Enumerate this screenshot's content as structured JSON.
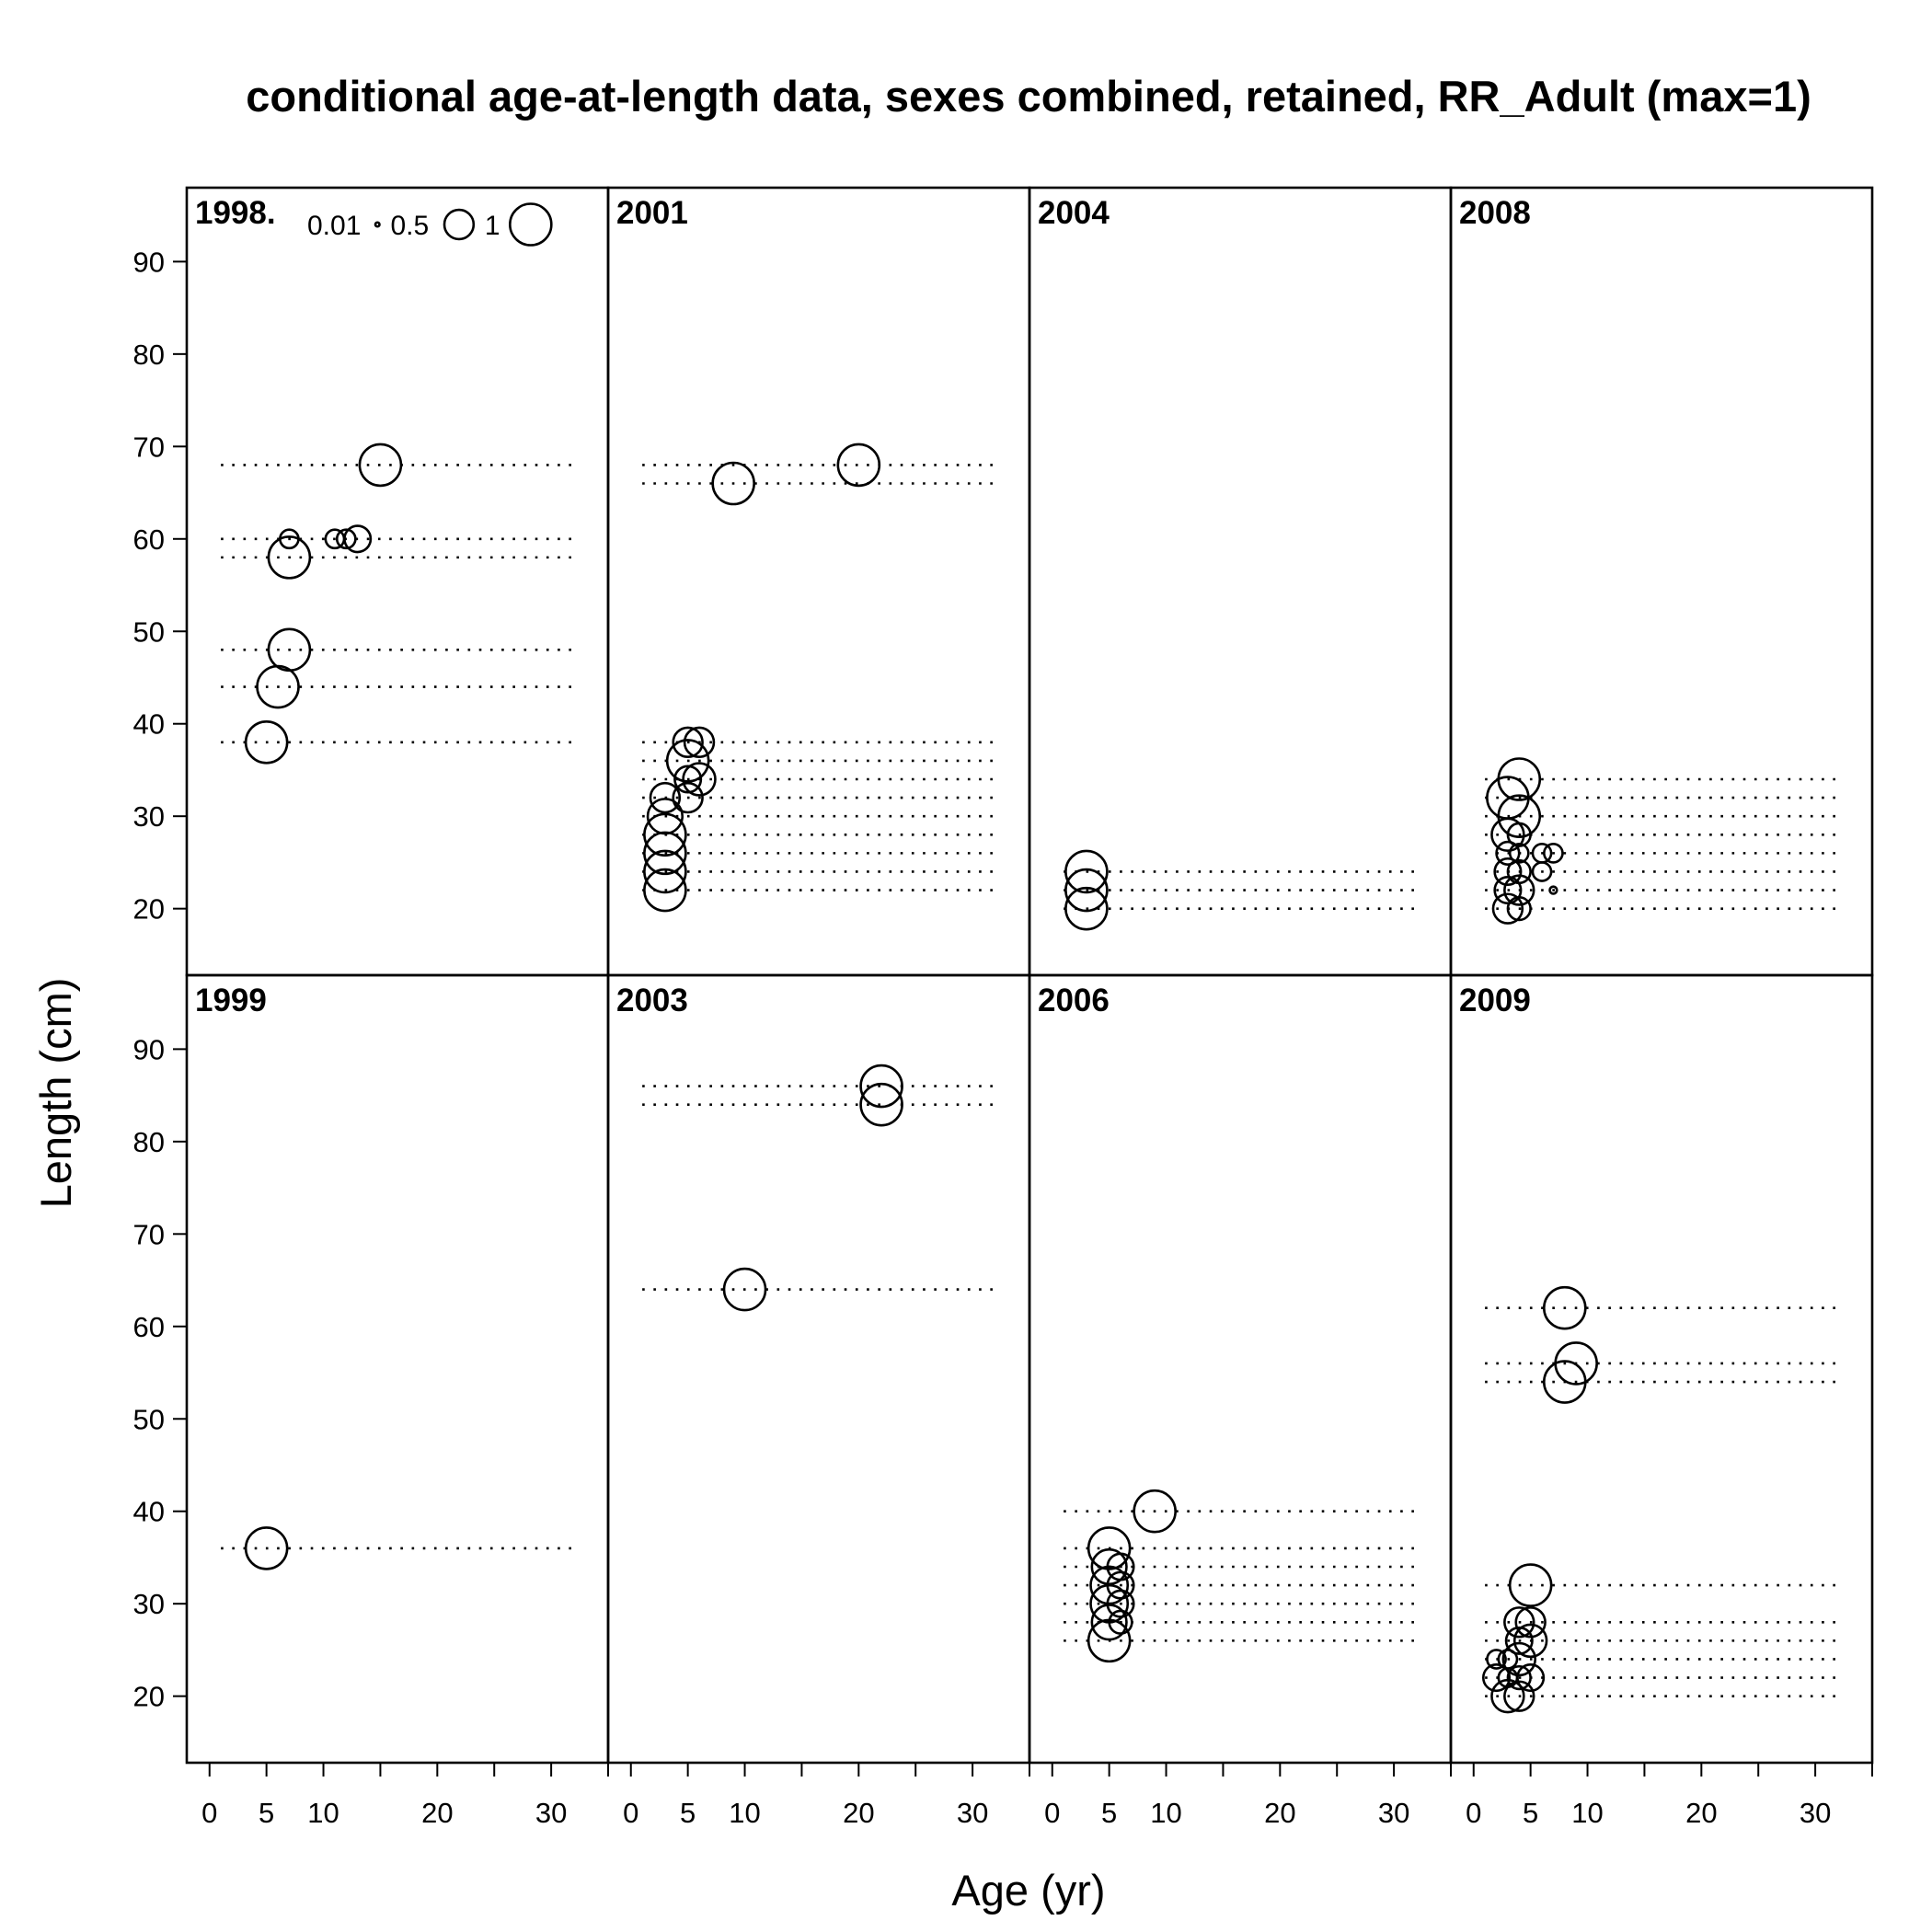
{
  "chart_data": {
    "type": "scatter",
    "title": "conditional age-at-length data, sexes combined, retained, RR_Adult (max=1)",
    "xlabel": "Age (yr)",
    "ylabel": "Length (cm)",
    "xlim": [
      -2,
      35
    ],
    "ylim": [
      12.8,
      98
    ],
    "x_ticks": [
      0,
      5,
      10,
      20,
      30
    ],
    "x_minor_ticks": [
      15,
      25,
      35
    ],
    "y_ticks": [
      20,
      30,
      40,
      50,
      60,
      70,
      80,
      90
    ],
    "grid": false,
    "layout": {
      "rows": 2,
      "cols": 4
    },
    "legend": {
      "placement": "top of first panel",
      "entries": [
        {
          "label": "0.01",
          "value": 0.01
        },
        {
          "label": "0.5",
          "value": 0.5
        },
        {
          "label": "1",
          "value": 1
        }
      ]
    },
    "panels": [
      {
        "label": "1998.",
        "lengths": [
          38,
          44,
          48,
          58,
          60,
          68
        ],
        "points": [
          {
            "x": 5,
            "y": 38,
            "size": 1
          },
          {
            "x": 6,
            "y": 44,
            "size": 1
          },
          {
            "x": 7,
            "y": 48,
            "size": 1
          },
          {
            "x": 7,
            "y": 58,
            "size": 1
          },
          {
            "x": 7,
            "y": 60,
            "size": 0.2
          },
          {
            "x": 11,
            "y": 60,
            "size": 0.2
          },
          {
            "x": 12,
            "y": 60,
            "size": 0.2
          },
          {
            "x": 13,
            "y": 60,
            "size": 0.4
          },
          {
            "x": 15,
            "y": 68,
            "size": 1
          }
        ]
      },
      {
        "label": "1999",
        "lengths": [
          36
        ],
        "points": [
          {
            "x": 5,
            "y": 36,
            "size": 1
          }
        ]
      },
      {
        "label": "2001",
        "lengths": [
          22,
          24,
          26,
          28,
          30,
          32,
          34,
          36,
          38,
          66,
          68
        ],
        "points": [
          {
            "x": 3,
            "y": 22,
            "size": 1
          },
          {
            "x": 3,
            "y": 24,
            "size": 1
          },
          {
            "x": 3,
            "y": 26,
            "size": 1
          },
          {
            "x": 3,
            "y": 28,
            "size": 1
          },
          {
            "x": 3,
            "y": 30,
            "size": 0.7
          },
          {
            "x": 3,
            "y": 32,
            "size": 0.5
          },
          {
            "x": 5,
            "y": 32,
            "size": 0.5
          },
          {
            "x": 6,
            "y": 34,
            "size": 0.6
          },
          {
            "x": 5,
            "y": 34,
            "size": 0.4
          },
          {
            "x": 5,
            "y": 36,
            "size": 1
          },
          {
            "x": 5,
            "y": 38,
            "size": 0.5
          },
          {
            "x": 6,
            "y": 38,
            "size": 0.5
          },
          {
            "x": 9,
            "y": 66,
            "size": 1
          },
          {
            "x": 20,
            "y": 68,
            "size": 1
          }
        ]
      },
      {
        "label": "2003",
        "lengths": [
          64,
          84,
          86
        ],
        "points": [
          {
            "x": 10,
            "y": 64,
            "size": 1
          },
          {
            "x": 22,
            "y": 84,
            "size": 1
          },
          {
            "x": 22,
            "y": 86,
            "size": 1
          }
        ]
      },
      {
        "label": "2004",
        "lengths": [
          20,
          22,
          24
        ],
        "points": [
          {
            "x": 3,
            "y": 20,
            "size": 1
          },
          {
            "x": 3,
            "y": 22,
            "size": 1
          },
          {
            "x": 3,
            "y": 24,
            "size": 1
          }
        ]
      },
      {
        "label": "2006",
        "lengths": [
          26,
          28,
          30,
          32,
          34,
          36,
          40
        ],
        "points": [
          {
            "x": 5,
            "y": 26,
            "size": 1
          },
          {
            "x": 5,
            "y": 28,
            "size": 0.7
          },
          {
            "x": 6,
            "y": 28,
            "size": 0.3
          },
          {
            "x": 5,
            "y": 30,
            "size": 0.8
          },
          {
            "x": 6,
            "y": 30,
            "size": 0.4
          },
          {
            "x": 5,
            "y": 32,
            "size": 0.8
          },
          {
            "x": 6,
            "y": 32,
            "size": 0.4
          },
          {
            "x": 5,
            "y": 34,
            "size": 0.7
          },
          {
            "x": 6,
            "y": 34,
            "size": 0.4
          },
          {
            "x": 5,
            "y": 36,
            "size": 1
          },
          {
            "x": 9,
            "y": 40,
            "size": 1
          }
        ]
      },
      {
        "label": "2008",
        "lengths": [
          20,
          22,
          24,
          26,
          28,
          30,
          32,
          34
        ],
        "points": [
          {
            "x": 3,
            "y": 20,
            "size": 0.5
          },
          {
            "x": 4,
            "y": 20,
            "size": 0.3
          },
          {
            "x": 3,
            "y": 22,
            "size": 0.4
          },
          {
            "x": 4,
            "y": 22,
            "size": 0.5
          },
          {
            "x": 7,
            "y": 22,
            "size": 0.03
          },
          {
            "x": 3,
            "y": 24,
            "size": 0.4
          },
          {
            "x": 4,
            "y": 24,
            "size": 0.3
          },
          {
            "x": 6,
            "y": 24,
            "size": 0.2
          },
          {
            "x": 3,
            "y": 26,
            "size": 0.3
          },
          {
            "x": 4,
            "y": 26,
            "size": 0.2
          },
          {
            "x": 6,
            "y": 26,
            "size": 0.2
          },
          {
            "x": 7,
            "y": 26,
            "size": 0.2
          },
          {
            "x": 3,
            "y": 28,
            "size": 0.6
          },
          {
            "x": 4,
            "y": 28,
            "size": 0.3
          },
          {
            "x": 4,
            "y": 30,
            "size": 1
          },
          {
            "x": 3,
            "y": 32,
            "size": 1
          },
          {
            "x": 4,
            "y": 34,
            "size": 1
          }
        ]
      },
      {
        "label": "2009",
        "lengths": [
          20,
          22,
          24,
          26,
          28,
          32,
          54,
          56,
          62
        ],
        "points": [
          {
            "x": 3,
            "y": 20,
            "size": 0.6
          },
          {
            "x": 4,
            "y": 20,
            "size": 0.5
          },
          {
            "x": 2,
            "y": 22,
            "size": 0.4
          },
          {
            "x": 3,
            "y": 22,
            "size": 0.2
          },
          {
            "x": 4,
            "y": 22,
            "size": 0.3
          },
          {
            "x": 5,
            "y": 22,
            "size": 0.4
          },
          {
            "x": 2,
            "y": 24,
            "size": 0.2
          },
          {
            "x": 3,
            "y": 24,
            "size": 0.2
          },
          {
            "x": 4,
            "y": 24,
            "size": 0.6
          },
          {
            "x": 4,
            "y": 26,
            "size": 0.4
          },
          {
            "x": 5,
            "y": 26,
            "size": 0.6
          },
          {
            "x": 4,
            "y": 28,
            "size": 0.5
          },
          {
            "x": 5,
            "y": 28,
            "size": 0.5
          },
          {
            "x": 5,
            "y": 32,
            "size": 1
          },
          {
            "x": 8,
            "y": 54,
            "size": 1
          },
          {
            "x": 9,
            "y": 56,
            "size": 1
          },
          {
            "x": 8,
            "y": 62,
            "size": 1
          }
        ]
      }
    ]
  }
}
